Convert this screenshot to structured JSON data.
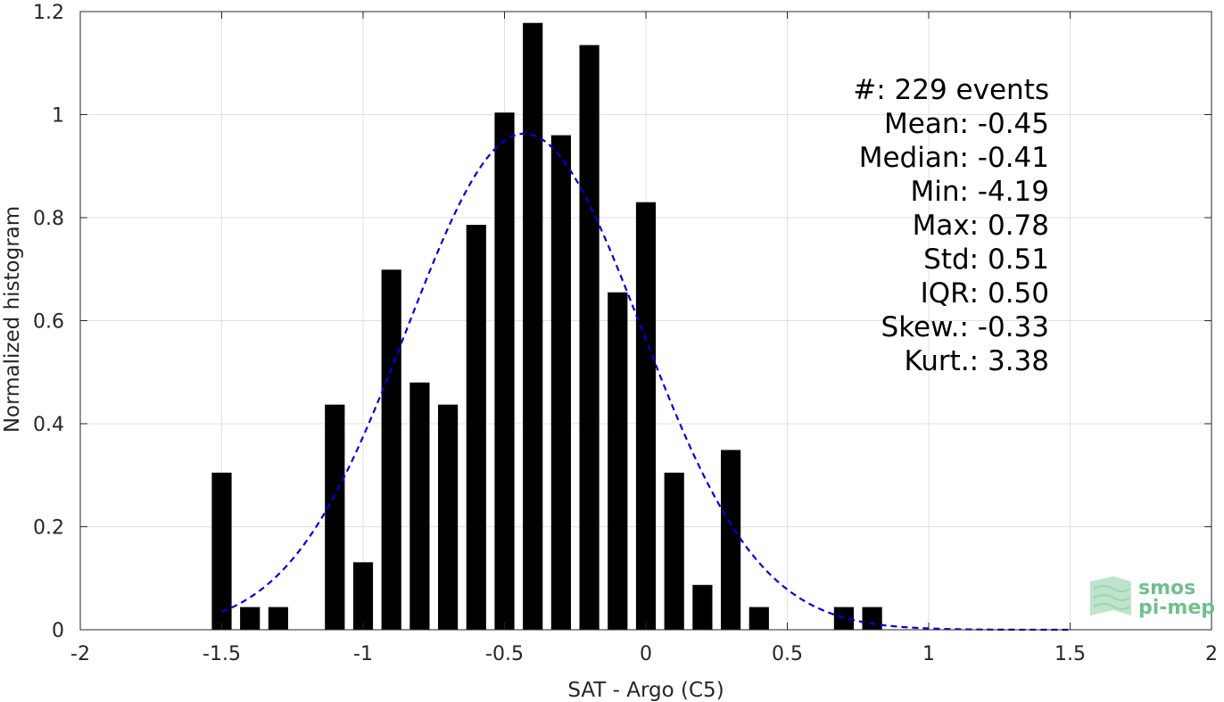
{
  "chart_data": {
    "type": "bar",
    "xlabel": "SAT - Argo (C5)",
    "ylabel": "Normalized histogram",
    "xlim": [
      -2,
      2
    ],
    "ylim": [
      0,
      1.2
    ],
    "xticks": [
      -2,
      -1.5,
      -1,
      -0.5,
      0,
      0.5,
      1,
      1.5,
      2
    ],
    "xtick_labels": [
      "-2",
      "-1.5",
      "-1",
      "-0.5",
      "0",
      "0.5",
      "1",
      "1.5",
      "2"
    ],
    "yticks": [
      0,
      0.2,
      0.4,
      0.6,
      0.8,
      1,
      1.2
    ],
    "ytick_labels": [
      "0",
      "0.2",
      "0.4",
      "0.6",
      "0.8",
      "1",
      "1.2"
    ],
    "grid": true,
    "bar_width": 0.07,
    "bars": {
      "x": [
        -1.5,
        -1.4,
        -1.3,
        -1.1,
        -1.0,
        -0.9,
        -0.8,
        -0.7,
        -0.6,
        -0.5,
        -0.4,
        -0.3,
        -0.2,
        -0.1,
        0.0,
        0.1,
        0.2,
        0.3,
        0.4,
        0.7,
        0.8
      ],
      "values": [
        0.305,
        0.044,
        0.044,
        0.437,
        0.131,
        0.699,
        0.48,
        0.437,
        0.786,
        1.004,
        1.178,
        0.96,
        1.135,
        0.655,
        0.83,
        0.305,
        0.087,
        0.349,
        0.044,
        0.044,
        0.044
      ]
    },
    "fit_curve": {
      "style": "dashed",
      "color": "#0000dd",
      "mean": -0.43,
      "std": 0.415,
      "peak": 0.963,
      "x_range": [
        -1.5,
        1.5
      ]
    },
    "bar_color": "#000000"
  },
  "stats": [
    {
      "label": "#  ",
      "value": ": 229 events"
    },
    {
      "label": "Mean ",
      "value": ": -0.45"
    },
    {
      "label": "Median ",
      "value": ": -0.41"
    },
    {
      "label": "Min ",
      "value": ": -4.19"
    },
    {
      "label": "Max ",
      "value": ": 0.78"
    },
    {
      "label": "Std ",
      "value": ": 0.51"
    },
    {
      "label": "IQR ",
      "value": ": 0.50"
    },
    {
      "label": "Skew. ",
      "value": ": -0.33"
    },
    {
      "label": "Kurt. ",
      "value": ": 3.38"
    }
  ],
  "logo": {
    "line1": "smos",
    "line2": "pi-mep",
    "color": "#6fbf8f"
  }
}
